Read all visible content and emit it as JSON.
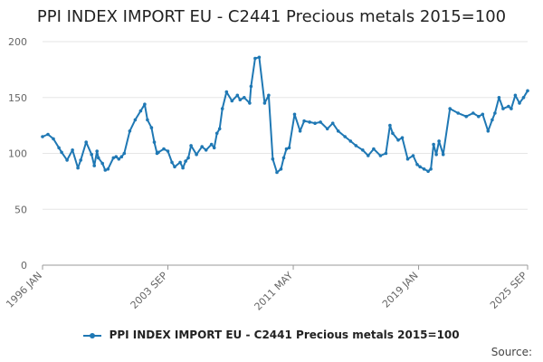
{
  "page": {
    "title": "PPI INDEX IMPORT EU - C2441 Precious metals 2015=100",
    "source_label": "Source:"
  },
  "colors": {
    "series": "#1f78b4",
    "grid": "#e6e6e6",
    "axis": "#999999",
    "text": "#666666"
  },
  "chart_data": {
    "type": "line",
    "title": "PPI INDEX IMPORT EU - C2441 Precious metals 2015=100",
    "xlabel": "",
    "ylabel": "",
    "ylim": [
      0,
      200
    ],
    "yticks": [
      0,
      50,
      100,
      150,
      200
    ],
    "grid": true,
    "legend_position": "bottom",
    "x_range": [
      "1996-01",
      "2025-09"
    ],
    "x_tick_labels": [
      {
        "label": "1996 JAN",
        "date": "1996-01"
      },
      {
        "label": "2003 SEP",
        "date": "2003-09"
      },
      {
        "label": "2011 MAY",
        "date": "2011-05"
      },
      {
        "label": "2019 JAN",
        "date": "2019-01"
      },
      {
        "label": "2025 SEP",
        "date": "2025-09"
      }
    ],
    "series": [
      {
        "name": "PPI INDEX IMPORT EU - C2441 Precious metals 2015=100",
        "x": [
          "1996-01",
          "1996-05",
          "1996-09",
          "1997-01",
          "1997-03",
          "1997-07",
          "1997-11",
          "1998-03",
          "1998-05",
          "1998-09",
          "1999-01",
          "1999-03",
          "1999-05",
          "1999-06",
          "1999-09",
          "1999-11",
          "2000-01",
          "2000-05",
          "2000-07",
          "2000-09",
          "2000-11",
          "2001-01",
          "2001-05",
          "2001-09",
          "2002-01",
          "2002-04",
          "2002-06",
          "2002-09",
          "2002-11",
          "2003-01",
          "2003-02",
          "2003-06",
          "2003-09",
          "2003-12",
          "2004-02",
          "2004-06",
          "2004-08",
          "2004-10",
          "2004-12",
          "2005-02",
          "2005-06",
          "2005-10",
          "2006-01",
          "2006-05",
          "2006-07",
          "2006-09",
          "2006-11",
          "2007-01",
          "2007-04",
          "2007-08",
          "2007-12",
          "2008-02",
          "2008-05",
          "2008-09",
          "2008-10",
          "2009-01",
          "2009-04",
          "2009-08",
          "2009-11",
          "2010-02",
          "2010-05",
          "2010-08",
          "2010-10",
          "2010-12",
          "2011-02",
          "2011-06",
          "2011-10",
          "2012-01",
          "2012-05",
          "2012-09",
          "2013-01",
          "2013-06",
          "2013-10",
          "2014-02",
          "2014-07",
          "2014-11",
          "2015-03",
          "2015-08",
          "2015-12",
          "2016-04",
          "2016-09",
          "2017-01",
          "2017-04",
          "2017-06",
          "2017-10",
          "2018-01",
          "2018-05",
          "2018-09",
          "2018-12",
          "2019-02",
          "2019-05",
          "2019-08",
          "2019-10",
          "2019-12",
          "2020-02",
          "2020-04",
          "2020-07",
          "2020-12",
          "2021-06",
          "2021-12",
          "2022-05",
          "2022-09",
          "2022-12",
          "2023-04",
          "2023-07",
          "2023-09",
          "2023-12",
          "2024-03",
          "2024-07",
          "2024-09",
          "2024-12",
          "2025-03",
          "2025-06",
          "2025-09"
        ],
        "values": [
          115,
          117,
          113,
          105,
          101,
          94,
          103,
          87,
          94,
          110,
          99,
          89,
          102,
          96,
          91,
          85,
          86,
          96,
          97,
          95,
          97,
          100,
          120,
          130,
          138,
          144,
          130,
          123,
          110,
          100,
          101,
          104,
          102,
          92,
          88,
          92,
          87,
          93,
          96,
          107,
          99,
          106,
          103,
          108,
          105,
          118,
          122,
          140,
          155,
          147,
          152,
          148,
          150,
          145,
          160,
          185,
          186,
          145,
          152,
          95,
          83,
          86,
          96,
          104,
          105,
          135,
          120,
          129,
          128,
          127,
          128,
          122,
          127,
          120,
          115,
          111,
          107,
          103,
          98,
          104,
          98,
          100,
          125,
          118,
          112,
          114,
          95,
          98,
          90,
          88,
          86,
          84,
          86,
          108,
          99,
          111,
          99,
          140,
          136,
          133,
          136,
          133,
          135,
          120,
          130,
          136,
          150,
          140,
          142,
          140,
          152,
          145,
          150,
          156
        ]
      }
    ]
  }
}
